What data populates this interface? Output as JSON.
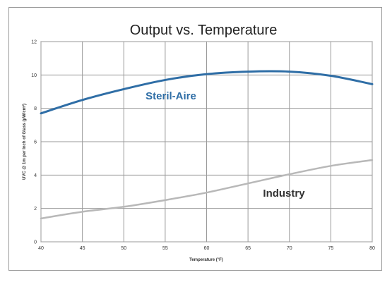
{
  "chart_data": {
    "type": "line",
    "title": "Output vs. Temperature",
    "xlabel": "Temperature (°F)",
    "ylabel": "UVC @ 1m per Inch of Glass (µW/cm²)",
    "xlim": [
      40,
      80
    ],
    "ylim": [
      0,
      12
    ],
    "xticks": [
      40,
      45,
      50,
      55,
      60,
      65,
      70,
      75,
      80
    ],
    "yticks": [
      0,
      2,
      4,
      6,
      8,
      10,
      12
    ],
    "grid": true,
    "series": [
      {
        "name": "Steril-Aire",
        "color": "#2f6ea6",
        "x": [
          40,
          45,
          50,
          55,
          60,
          65,
          70,
          75,
          80
        ],
        "values": [
          7.7,
          8.5,
          9.15,
          9.7,
          10.05,
          10.2,
          10.2,
          9.95,
          9.45
        ]
      },
      {
        "name": "Industry",
        "color": "#b8b8b8",
        "x": [
          40,
          45,
          50,
          55,
          60,
          65,
          70,
          75,
          80
        ],
        "values": [
          1.4,
          1.8,
          2.1,
          2.5,
          2.95,
          3.5,
          4.05,
          4.55,
          4.9
        ]
      }
    ]
  }
}
